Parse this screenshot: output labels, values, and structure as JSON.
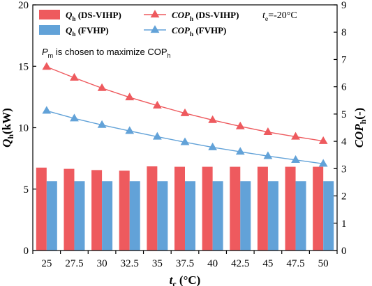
{
  "chart_data": {
    "type": "bar",
    "categories": [
      "25",
      "27.5",
      "30",
      "32.5",
      "35",
      "37.5",
      "40",
      "42.5",
      "45",
      "47.5",
      "50"
    ],
    "x": [
      25,
      27.5,
      30,
      32.5,
      35,
      37.5,
      40,
      42.5,
      45,
      47.5,
      50
    ],
    "xlabel": {
      "main": "t",
      "sub": "c",
      "rest": " (°C)"
    },
    "ylabel_left": {
      "main": "Q",
      "sub": "h",
      "rest": "(kW)"
    },
    "ylabel_right": {
      "main": "COP",
      "sub": "h",
      "rest": "(-)"
    },
    "ylim_left": [
      0,
      20
    ],
    "yticks_left": [
      0,
      5,
      10,
      15,
      20
    ],
    "ylim_right": [
      0,
      9
    ],
    "yticks_right": [
      0,
      1,
      2,
      3,
      4,
      5,
      6,
      7,
      8,
      9
    ],
    "grid": false,
    "legend_position": "top",
    "series": [
      {
        "name": {
          "main": "Q",
          "sub": "h",
          "rest": " (DS-VIHP)"
        },
        "kind": "bar",
        "axis": "left",
        "color": "#EE5A5E",
        "values": [
          6.75,
          6.65,
          6.55,
          6.5,
          6.85,
          6.82,
          6.82,
          6.82,
          6.82,
          6.82,
          6.82
        ]
      },
      {
        "name": {
          "main": "Q",
          "sub": "h",
          "rest": " (FVHP)"
        },
        "kind": "bar",
        "axis": "left",
        "color": "#62A2D8",
        "values": [
          5.65,
          5.65,
          5.65,
          5.65,
          5.65,
          5.65,
          5.65,
          5.65,
          5.65,
          5.65,
          5.65
        ]
      },
      {
        "name": {
          "main": "COP",
          "sub": "h",
          "rest": " (DS-VIHP)"
        },
        "kind": "line",
        "marker": "triangle",
        "axis": "right",
        "color": "#EE5A5E",
        "values": [
          6.73,
          6.33,
          5.95,
          5.61,
          5.31,
          5.03,
          4.78,
          4.55,
          4.34,
          4.17,
          4.01
        ]
      },
      {
        "name": {
          "main": "COP",
          "sub": "h",
          "rest": " (FVHP)"
        },
        "kind": "line",
        "marker": "triangle",
        "axis": "right",
        "color": "#62A2D8",
        "values": [
          5.12,
          4.84,
          4.6,
          4.38,
          4.17,
          3.97,
          3.78,
          3.62,
          3.46,
          3.32,
          3.18
        ]
      }
    ],
    "annotations": {
      "condition": {
        "main": "t",
        "sub": "e",
        "rest": "=-20°C"
      },
      "note": {
        "main": "P",
        "sub": "m",
        "rest": " is chosen to maximize COP",
        "tail_sub": "h"
      }
    }
  }
}
